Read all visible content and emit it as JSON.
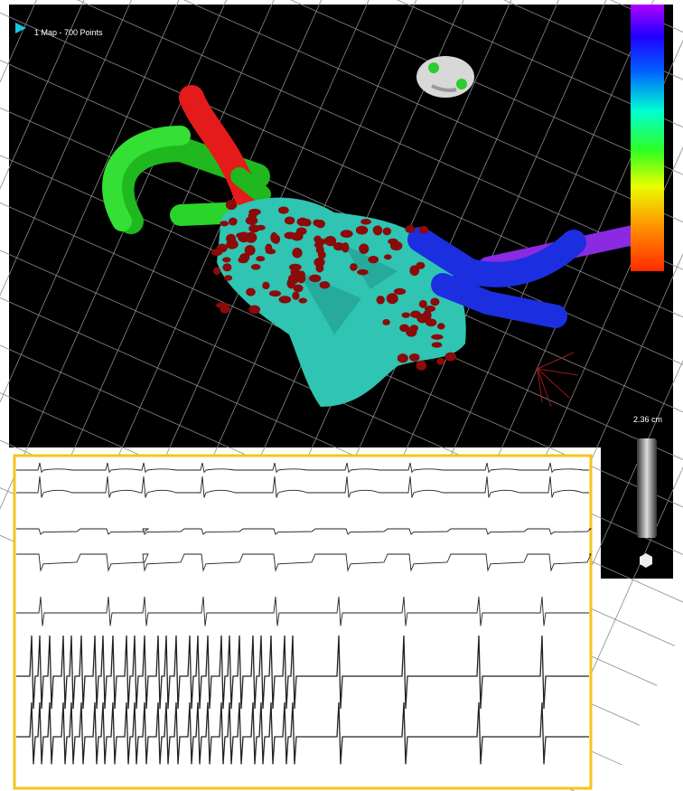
{
  "map_label": "1 Map - 700 Points",
  "scale_label": "2.36 cm"
}
